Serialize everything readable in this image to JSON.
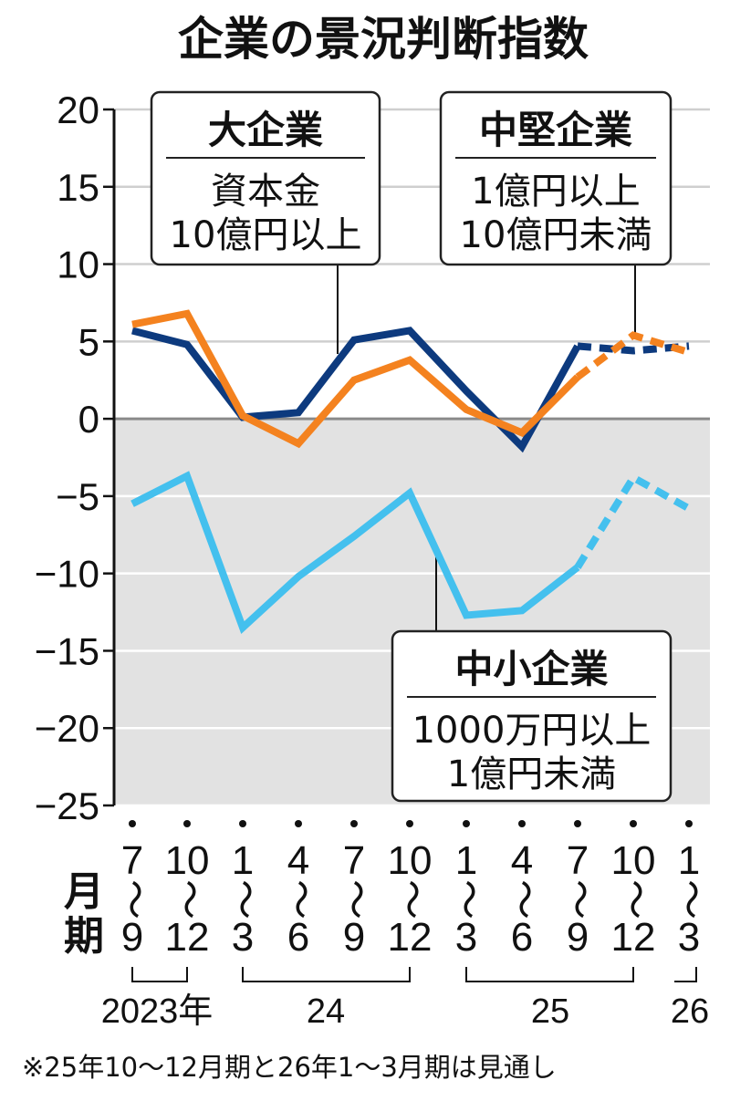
{
  "chart_data": {
    "type": "line",
    "title": "企業の景況判断指数",
    "ylim": [
      -25,
      20
    ],
    "yticks": [
      20,
      15,
      10,
      5,
      0,
      -5,
      -10,
      -15,
      -20,
      -25
    ],
    "ytick_labels": [
      "20",
      "15",
      "10",
      "5",
      "0",
      "−5",
      "−10",
      "−15",
      "−20",
      "−25"
    ],
    "x_axis_prefix": [
      "月",
      "期"
    ],
    "tilde": "〜",
    "categories": [
      {
        "start": "7",
        "end": "9"
      },
      {
        "start": "10",
        "end": "12"
      },
      {
        "start": "1",
        "end": "3"
      },
      {
        "start": "4",
        "end": "6"
      },
      {
        "start": "7",
        "end": "9"
      },
      {
        "start": "10",
        "end": "12"
      },
      {
        "start": "1",
        "end": "3"
      },
      {
        "start": "4",
        "end": "6"
      },
      {
        "start": "7",
        "end": "9"
      },
      {
        "start": "10",
        "end": "12"
      },
      {
        "start": "1",
        "end": "3"
      }
    ],
    "year_groups": [
      {
        "label": "2023年",
        "from": 0,
        "to": 1
      },
      {
        "label": "24",
        "from": 2,
        "to": 5
      },
      {
        "label": "25",
        "from": 6,
        "to": 9
      },
      {
        "label": "26",
        "from": 10,
        "to": 10
      }
    ],
    "forecast_from_index": 8,
    "series": [
      {
        "name": "大企業",
        "condition_lines": [
          "資本金",
          "10億円以上"
        ],
        "color": "#0d3a7e",
        "values": [
          5.7,
          4.8,
          0.1,
          0.4,
          5.1,
          5.7,
          1.8,
          -1.8,
          4.7,
          4.4,
          4.7
        ]
      },
      {
        "name": "中堅企業",
        "condition_lines": [
          "1億円以上",
          "10億円未満"
        ],
        "color": "#f4821f",
        "values": [
          6.1,
          6.8,
          0.2,
          -1.6,
          2.5,
          3.8,
          0.6,
          -0.9,
          2.7,
          5.4,
          4.3
        ]
      },
      {
        "name": "中小企業",
        "condition_lines": [
          "1000万円以上",
          "1億円未満"
        ],
        "color": "#44c0ee",
        "values": [
          -5.5,
          -3.7,
          -13.5,
          -10.2,
          -7.6,
          -4.8,
          -12.7,
          -12.4,
          -9.6,
          -3.8,
          -5.8
        ]
      }
    ],
    "note": "※25年10〜12月期と26年1〜3月期は見通し"
  }
}
